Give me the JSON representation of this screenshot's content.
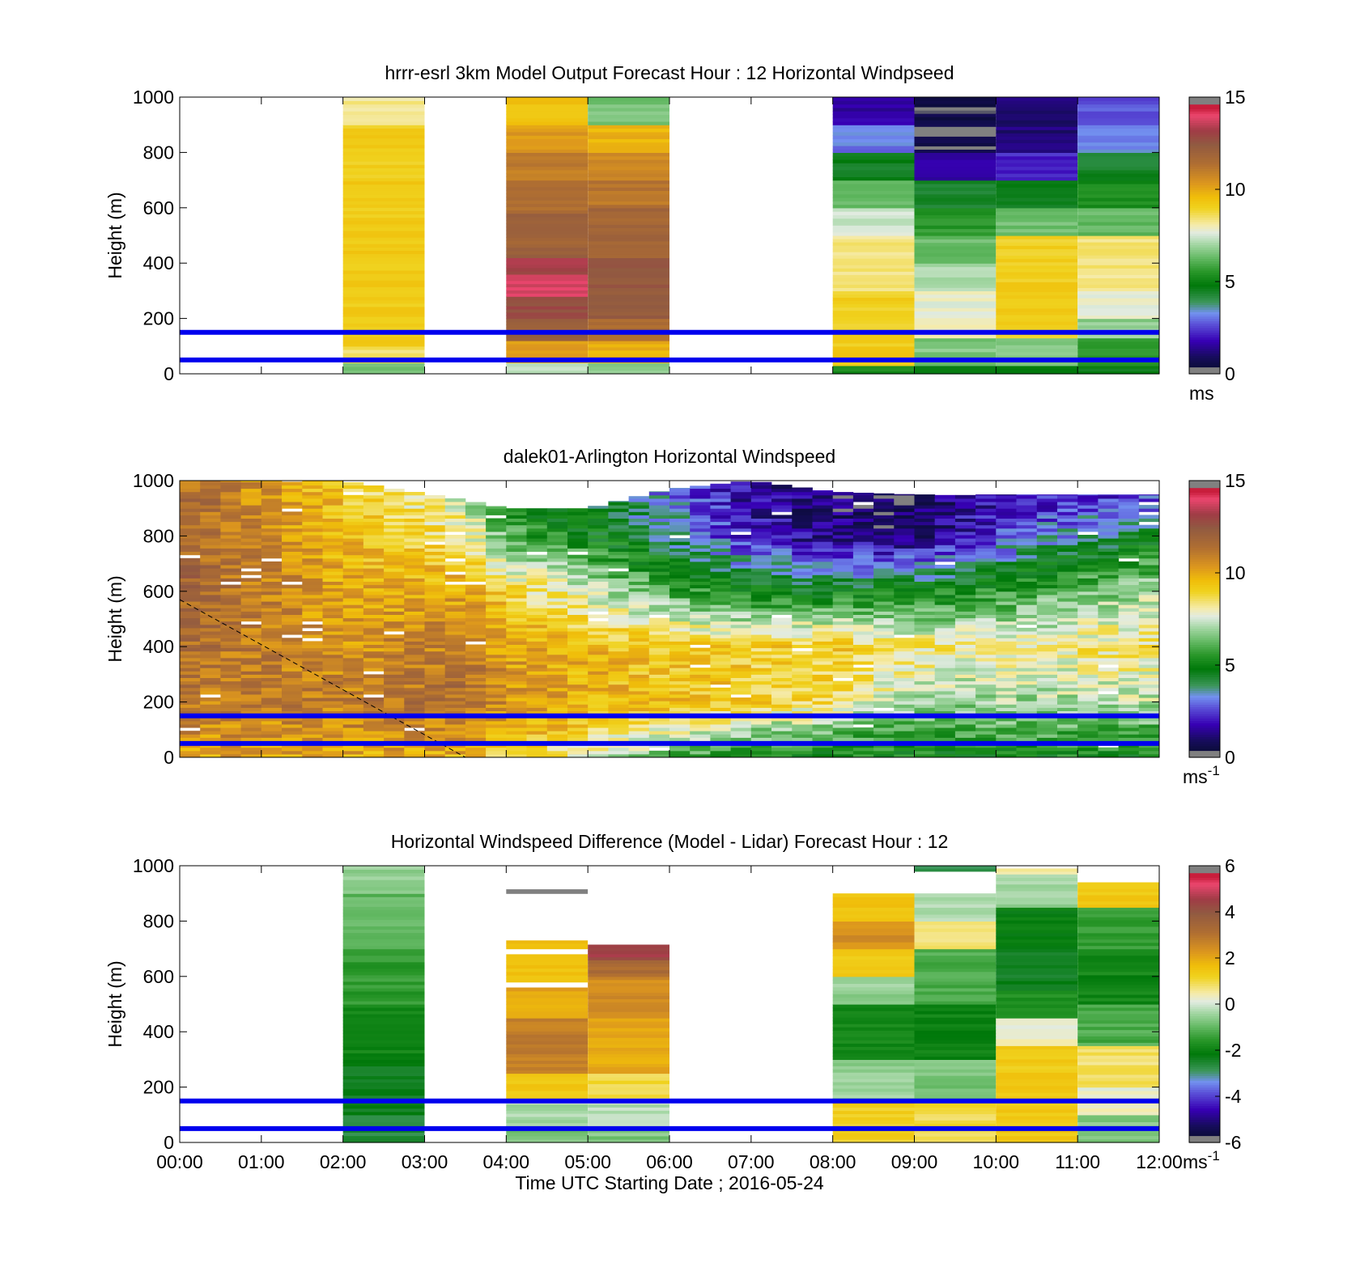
{
  "figure": {
    "xlabel": "Time UTC  Starting Date ; 2016-05-24",
    "xticks": [
      "00:00",
      "01:00",
      "02:00",
      "03:00",
      "04:00",
      "05:00",
      "06:00",
      "07:00",
      "08:00",
      "09:00",
      "10:00",
      "11:00",
      "12:00"
    ],
    "overlay_line_color": "#0000ee",
    "missing_color": "#ffffff"
  },
  "chart_data": [
    {
      "type": "heatmap",
      "title": "hrrr-esrl 3km Model Output   Forecast Hour : 12 Horizontal Windpseed",
      "ylabel": "Height (m)",
      "xlim": [
        0,
        12
      ],
      "ylim": [
        0,
        1000
      ],
      "yticks": [
        "0",
        "200",
        "400",
        "600",
        "800",
        "1000"
      ],
      "colorbar": {
        "range": [
          0,
          15
        ],
        "ticks": [
          "0",
          "5",
          "10",
          "15"
        ],
        "unit": "ms",
        "unit_sup": ""
      },
      "reference_lines_m": [
        50,
        150
      ],
      "cells": [
        {
          "x0": 2,
          "x1": 3,
          "y0": 0,
          "y1": 40,
          "v": 6.5
        },
        {
          "x0": 2,
          "x1": 3,
          "y0": 40,
          "y1": 100,
          "v": 8.5
        },
        {
          "x0": 2,
          "x1": 3,
          "y0": 100,
          "y1": 900,
          "v": 9.2
        },
        {
          "x0": 2,
          "x1": 3,
          "y0": 900,
          "y1": 1000,
          "v": 8.2
        },
        {
          "x0": 4,
          "x1": 5,
          "y0": 0,
          "y1": 40,
          "v": 7.2
        },
        {
          "x0": 4,
          "x1": 5,
          "y0": 40,
          "y1": 120,
          "v": 10.2
        },
        {
          "x0": 4,
          "x1": 5,
          "y0": 120,
          "y1": 200,
          "v": 12
        },
        {
          "x0": 4,
          "x1": 5,
          "y0": 200,
          "y1": 280,
          "v": 12.8
        },
        {
          "x0": 4,
          "x1": 5,
          "y0": 280,
          "y1": 360,
          "v": 13.8
        },
        {
          "x0": 4,
          "x1": 5,
          "y0": 360,
          "y1": 420,
          "v": 13.2
        },
        {
          "x0": 4,
          "x1": 5,
          "y0": 420,
          "y1": 580,
          "v": 12
        },
        {
          "x0": 4,
          "x1": 5,
          "y0": 580,
          "y1": 700,
          "v": 11.5
        },
        {
          "x0": 4,
          "x1": 5,
          "y0": 700,
          "y1": 800,
          "v": 11
        },
        {
          "x0": 4,
          "x1": 5,
          "y0": 800,
          "y1": 900,
          "v": 10.3
        },
        {
          "x0": 4,
          "x1": 5,
          "y0": 900,
          "y1": 1000,
          "v": 9.5
        },
        {
          "x0": 5,
          "x1": 6,
          "y0": 0,
          "y1": 40,
          "v": 6.8
        },
        {
          "x0": 5,
          "x1": 6,
          "y0": 40,
          "y1": 120,
          "v": 9.8
        },
        {
          "x0": 5,
          "x1": 6,
          "y0": 120,
          "y1": 200,
          "v": 11.5
        },
        {
          "x0": 5,
          "x1": 6,
          "y0": 200,
          "y1": 300,
          "v": 12.3
        },
        {
          "x0": 5,
          "x1": 6,
          "y0": 300,
          "y1": 420,
          "v": 12.5
        },
        {
          "x0": 5,
          "x1": 6,
          "y0": 420,
          "y1": 600,
          "v": 11.8
        },
        {
          "x0": 5,
          "x1": 6,
          "y0": 600,
          "y1": 700,
          "v": 11.2
        },
        {
          "x0": 5,
          "x1": 6,
          "y0": 700,
          "y1": 800,
          "v": 10.6
        },
        {
          "x0": 5,
          "x1": 6,
          "y0": 800,
          "y1": 900,
          "v": 9.8
        },
        {
          "x0": 5,
          "x1": 6,
          "y0": 900,
          "y1": 1000,
          "v": 6.5
        },
        {
          "x0": 8,
          "x1": 9,
          "y0": 0,
          "y1": 30,
          "v": 5.2
        },
        {
          "x0": 8,
          "x1": 9,
          "y0": 30,
          "y1": 100,
          "v": 9.3
        },
        {
          "x0": 8,
          "x1": 9,
          "y0": 100,
          "y1": 300,
          "v": 9.1
        },
        {
          "x0": 8,
          "x1": 9,
          "y0": 300,
          "y1": 500,
          "v": 8.4
        },
        {
          "x0": 8,
          "x1": 9,
          "y0": 500,
          "y1": 600,
          "v": 7.4
        },
        {
          "x0": 8,
          "x1": 9,
          "y0": 600,
          "y1": 700,
          "v": 6.2
        },
        {
          "x0": 8,
          "x1": 9,
          "y0": 700,
          "y1": 800,
          "v": 4.6
        },
        {
          "x0": 8,
          "x1": 9,
          "y0": 800,
          "y1": 900,
          "v": 3.1
        },
        {
          "x0": 8,
          "x1": 9,
          "y0": 900,
          "y1": 1000,
          "v": 1.6
        },
        {
          "x0": 9,
          "x1": 10,
          "y0": 0,
          "y1": 30,
          "v": 4.7
        },
        {
          "x0": 9,
          "x1": 10,
          "y0": 30,
          "y1": 130,
          "v": 6.6
        },
        {
          "x0": 9,
          "x1": 10,
          "y0": 130,
          "y1": 300,
          "v": 7.8
        },
        {
          "x0": 9,
          "x1": 10,
          "y0": 300,
          "y1": 400,
          "v": 7.2
        },
        {
          "x0": 9,
          "x1": 10,
          "y0": 400,
          "y1": 500,
          "v": 6.4
        },
        {
          "x0": 9,
          "x1": 10,
          "y0": 500,
          "y1": 600,
          "v": 5.6
        },
        {
          "x0": 9,
          "x1": 10,
          "y0": 600,
          "y1": 700,
          "v": 4.4
        },
        {
          "x0": 9,
          "x1": 10,
          "y0": 700,
          "y1": 800,
          "v": 1.8
        },
        {
          "x0": 9,
          "x1": 10,
          "y0": 800,
          "y1": 1000,
          "v": 0.5
        },
        {
          "x0": 10,
          "x1": 11,
          "y0": 0,
          "y1": 30,
          "v": 4.8
        },
        {
          "x0": 10,
          "x1": 11,
          "y0": 30,
          "y1": 130,
          "v": 6.6
        },
        {
          "x0": 10,
          "x1": 11,
          "y0": 130,
          "y1": 500,
          "v": 9.1
        },
        {
          "x0": 10,
          "x1": 11,
          "y0": 500,
          "y1": 600,
          "v": 6.4
        },
        {
          "x0": 10,
          "x1": 11,
          "y0": 600,
          "y1": 700,
          "v": 4.5
        },
        {
          "x0": 10,
          "x1": 11,
          "y0": 700,
          "y1": 800,
          "v": 2.2
        },
        {
          "x0": 10,
          "x1": 11,
          "y0": 800,
          "y1": 1000,
          "v": 1.2
        },
        {
          "x0": 11,
          "x1": 12,
          "y0": 0,
          "y1": 30,
          "v": 4.8
        },
        {
          "x0": 11,
          "x1": 12,
          "y0": 30,
          "y1": 130,
          "v": 5.8
        },
        {
          "x0": 11,
          "x1": 12,
          "y0": 130,
          "y1": 200,
          "v": 6.8
        },
        {
          "x0": 11,
          "x1": 12,
          "y0": 200,
          "y1": 300,
          "v": 7.7
        },
        {
          "x0": 11,
          "x1": 12,
          "y0": 300,
          "y1": 500,
          "v": 8.4
        },
        {
          "x0": 11,
          "x1": 12,
          "y0": 500,
          "y1": 600,
          "v": 6.3
        },
        {
          "x0": 11,
          "x1": 12,
          "y0": 600,
          "y1": 700,
          "v": 5.3
        },
        {
          "x0": 11,
          "x1": 12,
          "y0": 700,
          "y1": 800,
          "v": 4.4
        },
        {
          "x0": 11,
          "x1": 12,
          "y0": 800,
          "y1": 900,
          "v": 3.2
        },
        {
          "x0": 11,
          "x1": 12,
          "y0": 900,
          "y1": 1000,
          "v": 2.7
        }
      ]
    },
    {
      "type": "heatmap",
      "title": "dalek01-Arlington  Horizontal Windspeed",
      "ylabel": "Height (m)",
      "xlim": [
        0,
        12
      ],
      "ylim": [
        0,
        1000
      ],
      "yticks": [
        "0",
        "200",
        "400",
        "600",
        "800",
        "1000"
      ],
      "colorbar": {
        "range": [
          0,
          15
        ],
        "ticks": [
          "0",
          "5",
          "10",
          "15"
        ],
        "unit": "ms",
        "unit_sup": "-1"
      },
      "reference_lines_m": [
        50,
        150
      ],
      "dashed_line": [
        [
          0,
          570
        ],
        [
          3.5,
          0
        ]
      ],
      "profile_step_hours": 0.25,
      "profile_end_hour": 11.8,
      "profile_levels_m": [
        0,
        1000
      ],
      "profile_nodes": [
        {
          "t": 0.0,
          "heights": [
            0,
            100,
            200,
            400,
            600,
            800,
            1000
          ],
          "values": [
            10.2,
            10.6,
            11.0,
            11.5,
            11.8,
            12.0,
            11.5
          ],
          "top": 1000
        },
        {
          "t": 2.0,
          "heights": [
            0,
            100,
            200,
            400,
            600,
            800,
            1000
          ],
          "values": [
            10.0,
            10.5,
            11.0,
            10.5,
            10.0,
            9.6,
            9.2
          ],
          "top": 1000
        },
        {
          "t": 3.5,
          "heights": [
            0,
            100,
            200,
            400,
            600,
            800,
            1000
          ],
          "values": [
            9.8,
            10.5,
            11.5,
            11.0,
            10.0,
            8.5,
            7.0
          ],
          "top": 930
        },
        {
          "t": 4.0,
          "heights": [
            0,
            100,
            200,
            400,
            600,
            800,
            1000
          ],
          "values": [
            9.0,
            10.0,
            10.5,
            10.0,
            9.0,
            6.0,
            5.0
          ],
          "top": 900
        },
        {
          "t": 5.0,
          "heights": [
            0,
            100,
            200,
            400,
            600,
            800,
            1000
          ],
          "values": [
            8.0,
            9.0,
            9.8,
            9.8,
            7.5,
            5.0,
            4.0
          ],
          "top": 900
        },
        {
          "t": 6.0,
          "heights": [
            0,
            100,
            200,
            400,
            600,
            800,
            1000
          ],
          "values": [
            6.0,
            8.0,
            9.5,
            9.2,
            6.0,
            3.8,
            3.0
          ],
          "top": 970
        },
        {
          "t": 7.0,
          "heights": [
            0,
            100,
            200,
            400,
            600,
            800,
            1000
          ],
          "values": [
            5.0,
            7.0,
            9.3,
            9.0,
            5.0,
            2.0,
            1.5
          ],
          "top": 1000
        },
        {
          "t": 8.0,
          "heights": [
            0,
            100,
            200,
            400,
            600,
            800,
            1000
          ],
          "values": [
            5.0,
            6.5,
            8.5,
            9.3,
            4.8,
            1.2,
            1.0
          ],
          "top": 960
        },
        {
          "t": 9.0,
          "heights": [
            0,
            100,
            200,
            400,
            600,
            800,
            1000
          ],
          "values": [
            5.0,
            6.0,
            7.0,
            8.5,
            5.0,
            1.0,
            0.8
          ],
          "top": 950
        },
        {
          "t": 10.0,
          "heights": [
            0,
            100,
            200,
            400,
            600,
            800,
            1000
          ],
          "values": [
            5.0,
            6.2,
            7.0,
            8.0,
            5.5,
            2.5,
            1.5
          ],
          "top": 950
        },
        {
          "t": 11.8,
          "heights": [
            0,
            100,
            200,
            400,
            600,
            800,
            1000
          ],
          "values": [
            5.0,
            6.0,
            7.2,
            8.6,
            7.0,
            4.5,
            1.8
          ],
          "top": 950
        }
      ]
    },
    {
      "type": "heatmap",
      "title": "Horizontal Windspeed Difference (Model - Lidar) Forecast Hour : 12",
      "ylabel": "Height (m)",
      "xlim": [
        0,
        12
      ],
      "ylim": [
        0,
        1000
      ],
      "yticks": [
        "0",
        "200",
        "400",
        "600",
        "800",
        "1000"
      ],
      "xticks_visible": true,
      "colorbar": {
        "range": [
          -6,
          6
        ],
        "ticks": [
          "-6",
          "-4",
          "-2",
          "0",
          "2",
          "4",
          "6"
        ],
        "unit": "ms",
        "unit_sup": "-1"
      },
      "reference_lines_m": [
        50,
        150
      ],
      "cells": [
        {
          "x0": 2,
          "x1": 3,
          "y0": 0,
          "y1": 100,
          "v": -2.6
        },
        {
          "x0": 2,
          "x1": 3,
          "y0": 100,
          "y1": 300,
          "v": -2.3
        },
        {
          "x0": 2,
          "x1": 3,
          "y0": 300,
          "y1": 500,
          "v": -1.9
        },
        {
          "x0": 2,
          "x1": 3,
          "y0": 500,
          "y1": 700,
          "v": -1.5
        },
        {
          "x0": 2,
          "x1": 3,
          "y0": 700,
          "y1": 900,
          "v": -1.0
        },
        {
          "x0": 2,
          "x1": 3,
          "y0": 900,
          "y1": 1000,
          "v": -0.5
        },
        {
          "x0": 4,
          "x1": 5,
          "y0": 0,
          "y1": 60,
          "v": -0.8
        },
        {
          "x0": 4,
          "x1": 5,
          "y0": 60,
          "y1": 150,
          "v": -0.3
        },
        {
          "x0": 4,
          "x1": 5,
          "y0": 150,
          "y1": 250,
          "v": 1.4
        },
        {
          "x0": 4,
          "x1": 5,
          "y0": 250,
          "y1": 450,
          "v": 2.8
        },
        {
          "x0": 4,
          "x1": 5,
          "y0": 450,
          "y1": 560,
          "v": 2.0
        },
        {
          "x0": 4,
          "x1": 5,
          "y0": 580,
          "y1": 680,
          "v": 1.5
        },
        {
          "x0": 4,
          "x1": 5,
          "y0": 700,
          "y1": 730,
          "v": 1.8
        },
        {
          "x0": 4,
          "x1": 5,
          "y0": 900,
          "y1": 915,
          "v": -6.2
        },
        {
          "x0": 5,
          "x1": 6,
          "y0": 0,
          "y1": 60,
          "v": -0.7
        },
        {
          "x0": 5,
          "x1": 6,
          "y0": 60,
          "y1": 150,
          "v": -0.2
        },
        {
          "x0": 5,
          "x1": 6,
          "y0": 150,
          "y1": 250,
          "v": 1.0
        },
        {
          "x0": 5,
          "x1": 6,
          "y0": 250,
          "y1": 450,
          "v": 2.0
        },
        {
          "x0": 5,
          "x1": 6,
          "y0": 450,
          "y1": 600,
          "v": 2.5
        },
        {
          "x0": 5,
          "x1": 6,
          "y0": 600,
          "y1": 660,
          "v": 3.3
        },
        {
          "x0": 5,
          "x1": 6,
          "y0": 660,
          "y1": 715,
          "v": 4.5
        },
        {
          "x0": 8,
          "x1": 9,
          "y0": 0,
          "y1": 150,
          "v": 1.3
        },
        {
          "x0": 8,
          "x1": 9,
          "y0": 150,
          "y1": 300,
          "v": -0.5
        },
        {
          "x0": 8,
          "x1": 9,
          "y0": 300,
          "y1": 500,
          "v": -1.8
        },
        {
          "x0": 8,
          "x1": 9,
          "y0": 500,
          "y1": 600,
          "v": -0.5
        },
        {
          "x0": 8,
          "x1": 9,
          "y0": 600,
          "y1": 700,
          "v": 1.3
        },
        {
          "x0": 8,
          "x1": 9,
          "y0": 700,
          "y1": 800,
          "v": 2.4
        },
        {
          "x0": 8,
          "x1": 9,
          "y0": 800,
          "y1": 900,
          "v": 1.5
        },
        {
          "x0": 9,
          "x1": 10,
          "y0": 0,
          "y1": 150,
          "v": 1.0
        },
        {
          "x0": 9,
          "x1": 10,
          "y0": 150,
          "y1": 300,
          "v": -0.8
        },
        {
          "x0": 9,
          "x1": 10,
          "y0": 300,
          "y1": 500,
          "v": -2.0
        },
        {
          "x0": 9,
          "x1": 10,
          "y0": 500,
          "y1": 700,
          "v": -1.2
        },
        {
          "x0": 9,
          "x1": 10,
          "y0": 700,
          "y1": 800,
          "v": 0.8
        },
        {
          "x0": 9,
          "x1": 10,
          "y0": 800,
          "y1": 900,
          "v": -0.3
        },
        {
          "x0": 9,
          "x1": 10,
          "y0": 980,
          "y1": 1000,
          "v": -2.8
        },
        {
          "x0": 10,
          "x1": 11,
          "y0": 0,
          "y1": 350,
          "v": 1.4
        },
        {
          "x0": 10,
          "x1": 11,
          "y0": 350,
          "y1": 450,
          "v": 0.3
        },
        {
          "x0": 10,
          "x1": 11,
          "y0": 450,
          "y1": 550,
          "v": -1.6
        },
        {
          "x0": 10,
          "x1": 11,
          "y0": 550,
          "y1": 700,
          "v": -2.4
        },
        {
          "x0": 10,
          "x1": 11,
          "y0": 700,
          "y1": 850,
          "v": -2.1
        },
        {
          "x0": 10,
          "x1": 11,
          "y0": 850,
          "y1": 970,
          "v": -0.4
        },
        {
          "x0": 10,
          "x1": 11,
          "y0": 970,
          "y1": 990,
          "v": 0.5
        },
        {
          "x0": 11,
          "x1": 12,
          "y0": 0,
          "y1": 100,
          "v": -0.6
        },
        {
          "x0": 11,
          "x1": 12,
          "y0": 100,
          "y1": 200,
          "v": 0.3
        },
        {
          "x0": 11,
          "x1": 12,
          "y0": 200,
          "y1": 350,
          "v": 0.8
        },
        {
          "x0": 11,
          "x1": 12,
          "y0": 350,
          "y1": 500,
          "v": -1.2
        },
        {
          "x0": 11,
          "x1": 12,
          "y0": 500,
          "y1": 700,
          "v": -1.9
        },
        {
          "x0": 11,
          "x1": 12,
          "y0": 700,
          "y1": 850,
          "v": -1.4
        },
        {
          "x0": 11,
          "x1": 12,
          "y0": 850,
          "y1": 940,
          "v": 1.4
        }
      ]
    }
  ]
}
